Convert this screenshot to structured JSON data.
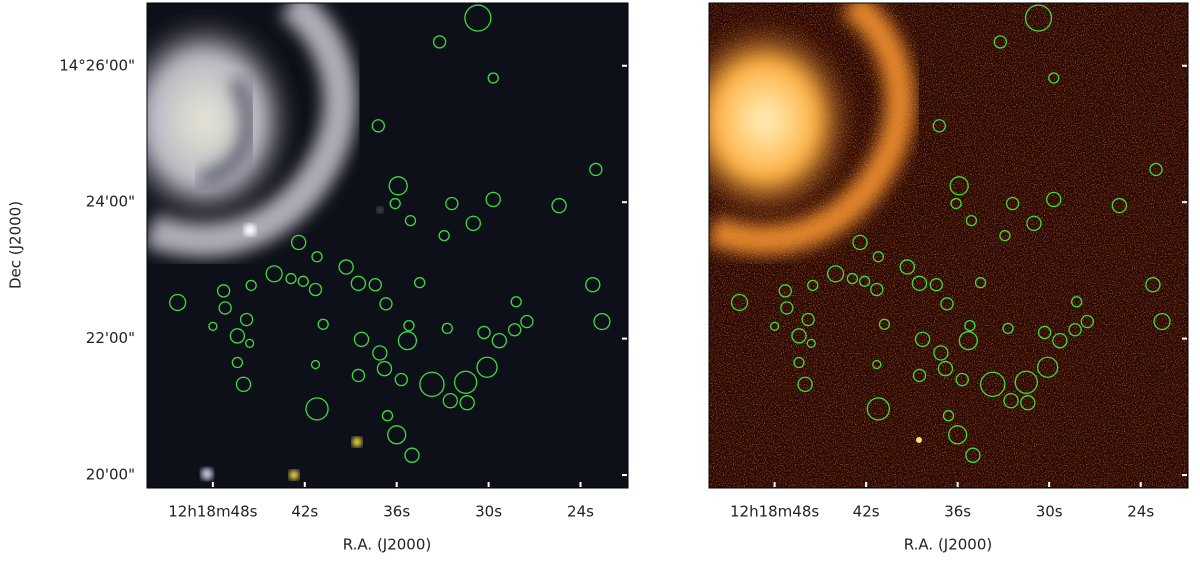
{
  "chart_data": [
    {
      "type": "scatter",
      "x_label": "R.A. (J2000)",
      "y_label": "Dec (J2000)",
      "xlim": [
        52.3,
        20.9
      ],
      "ylim": [
        19.81,
        26.92
      ],
      "xticks": [
        {
          "value": 48,
          "label": "12h18m48s"
        },
        {
          "value": 42,
          "label": "42s"
        },
        {
          "value": 36,
          "label": "36s"
        },
        {
          "value": 30,
          "label": "30s"
        },
        {
          "value": 24,
          "label": "24s"
        }
      ],
      "yticks": [
        {
          "value": 20,
          "label": "20'00\""
        },
        {
          "value": 22,
          "label": "22'00\""
        },
        {
          "value": 24,
          "label": "24'00\""
        },
        {
          "value": 26,
          "label": "14°26'00\""
        }
      ],
      "color": "#3ddc3d",
      "x": [
        30.7,
        33.2,
        29.7,
        37.2,
        23.0,
        35.9,
        36.1,
        32.4,
        29.7,
        25.4,
        35.1,
        31.0,
        32.9,
        42.4,
        41.2,
        44.0,
        39.3,
        42.9,
        42.1,
        38.5,
        37.4,
        41.3,
        45.5,
        47.3,
        34.5,
        50.3,
        36.7,
        28.2,
        23.2,
        47.2,
        45.8,
        48.0,
        40.8,
        35.2,
        32.7,
        27.5,
        28.3,
        22.6,
        30.3,
        46.4,
        38.3,
        35.3,
        29.3,
        45.6,
        37.1,
        46.4,
        41.3,
        36.8,
        30.1,
        38.5,
        35.7,
        33.7,
        31.5,
        46.0,
        32.5,
        31.4,
        41.2,
        36.6,
        36.0,
        35.0
      ],
      "y": [
        26.7,
        26.35,
        25.82,
        25.12,
        24.48,
        24.24,
        23.98,
        23.98,
        24.04,
        23.95,
        23.73,
        23.69,
        23.51,
        23.41,
        23.2,
        22.95,
        23.05,
        22.88,
        22.84,
        22.81,
        22.79,
        22.72,
        22.78,
        22.7,
        22.82,
        22.53,
        22.51,
        22.54,
        22.79,
        22.45,
        22.28,
        22.18,
        22.21,
        22.19,
        22.15,
        22.25,
        22.13,
        22.25,
        22.09,
        22.04,
        21.99,
        21.97,
        21.97,
        21.93,
        21.79,
        21.65,
        21.62,
        21.56,
        21.58,
        21.46,
        21.4,
        21.33,
        21.36,
        21.33,
        21.09,
        21.06,
        20.97,
        20.87,
        20.59,
        20.29
      ],
      "sizes": [
        11.4,
        5.3,
        4.4,
        5.3,
        5.3,
        7.9,
        4.4,
        5.3,
        6.2,
        6.2,
        4.4,
        6.2,
        4.4,
        6.2,
        4.4,
        7.0,
        6.2,
        4.4,
        4.4,
        6.2,
        5.3,
        5.3,
        4.4,
        5.3,
        4.4,
        7.0,
        5.3,
        4.4,
        6.2,
        5.3,
        5.3,
        3.5,
        4.4,
        4.4,
        4.4,
        5.3,
        5.3,
        7.0,
        5.3,
        6.2,
        6.2,
        7.9,
        6.2,
        3.5,
        6.2,
        4.4,
        3.5,
        6.2,
        8.8,
        5.3,
        5.3,
        10.6,
        9.7,
        6.2,
        6.2,
        6.2,
        9.7,
        4.4,
        7.9,
        6.2
      ]
    },
    {
      "type": "scatter",
      "x_label": "R.A. (J2000)",
      "xlim": [
        52.3,
        20.9
      ],
      "ylim": [
        19.81,
        26.92
      ],
      "xticks": [
        {
          "value": 48,
          "label": "12h18m48s"
        },
        {
          "value": 42,
          "label": "42s"
        },
        {
          "value": 36,
          "label": "36s"
        },
        {
          "value": 30,
          "label": "30s"
        },
        {
          "value": 24,
          "label": "24s"
        }
      ],
      "yticks": [
        20,
        22,
        24,
        26
      ],
      "color": "#3ddc3d"
    }
  ]
}
